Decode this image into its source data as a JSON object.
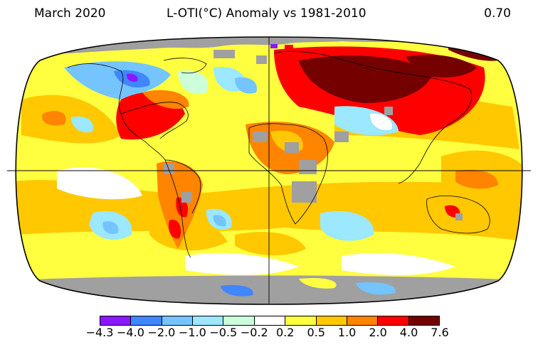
{
  "header": {
    "left": "March 2020",
    "center": "L-OTI(°C) Anomaly vs 1981-2010",
    "right": "0.70"
  },
  "legend": {
    "colors": [
      "#8a17ff",
      "#3f86ff",
      "#74c4ff",
      "#9be8ff",
      "#ccffd9",
      "#ffffff",
      "#ffff40",
      "#ffc800",
      "#ff8400",
      "#ff0000",
      "#750000"
    ],
    "ticks": [
      "−4.3",
      "−4.0",
      "−2.0",
      "−1.0",
      "−0.5",
      "−0.2",
      "0.2",
      "0.5",
      "1.0",
      "2.0",
      "4.0",
      "7.6"
    ]
  },
  "map": {
    "projection": "Robinson",
    "missing_color": "#a0a0a0",
    "graticule": "equator and prime meridian"
  }
}
